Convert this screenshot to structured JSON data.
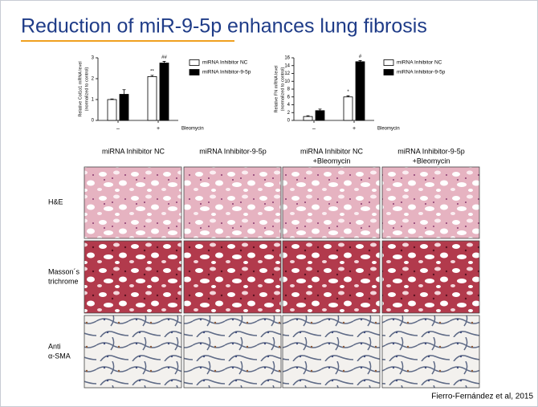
{
  "slide": {
    "title": "Reduction of miR-9-5p enhances lung fibrosis",
    "column_headers": [
      [
        "miRNA Inhibitor NC"
      ],
      [
        "miRNA Inhibitor-9-5p"
      ],
      [
        "miRNA Inhibitor NC",
        "+Bleomycin"
      ],
      [
        "miRNA Inhibitor-9-5p",
        "+Bleomycin"
      ]
    ],
    "row_labels": [
      [
        "H&E"
      ],
      [
        "Masson´s",
        "trichrome"
      ],
      [
        "Anti",
        "α-SMA"
      ]
    ],
    "citation": "Fierro-Fernández et al, 2015"
  },
  "chart_data": [
    {
      "type": "bar",
      "ylabel": [
        "Relative Col1α1 mRNA level",
        "(normalized to control)"
      ],
      "xlabel": "Bleomycin",
      "categories": [
        "–",
        "+"
      ],
      "ylim": [
        0,
        3
      ],
      "yticks": [
        0,
        1,
        2,
        3
      ],
      "series": [
        {
          "name": "miRNA Inhibitor NC",
          "color": "#ffffff",
          "values": [
            1.0,
            2.1
          ],
          "errors": [
            0.03,
            0.06
          ],
          "annotations": [
            null,
            "**"
          ]
        },
        {
          "name": "miRNA Inhibitor-9-5p",
          "color": "#000000",
          "values": [
            1.25,
            2.75
          ],
          "errors": [
            0.22,
            0.08
          ],
          "annotations": [
            null,
            "##"
          ]
        }
      ]
    },
    {
      "type": "bar",
      "ylabel": [
        "Relative FN mRNA level",
        "(normalized to control)"
      ],
      "xlabel": "Bleomycin",
      "categories": [
        "–",
        "+"
      ],
      "ylim": [
        0,
        16
      ],
      "yticks": [
        0,
        2,
        4,
        6,
        8,
        10,
        12,
        14,
        16
      ],
      "series": [
        {
          "name": "miRNA Inhibitor NC",
          "color": "#ffffff",
          "values": [
            1.0,
            6.0
          ],
          "errors": [
            0.2,
            0.3
          ],
          "annotations": [
            null,
            "*"
          ]
        },
        {
          "name": "miRNA Inhibitor-9-5p",
          "color": "#000000",
          "values": [
            2.5,
            15.0
          ],
          "errors": [
            0.4,
            0.3
          ],
          "annotations": [
            null,
            "#"
          ]
        }
      ]
    }
  ]
}
